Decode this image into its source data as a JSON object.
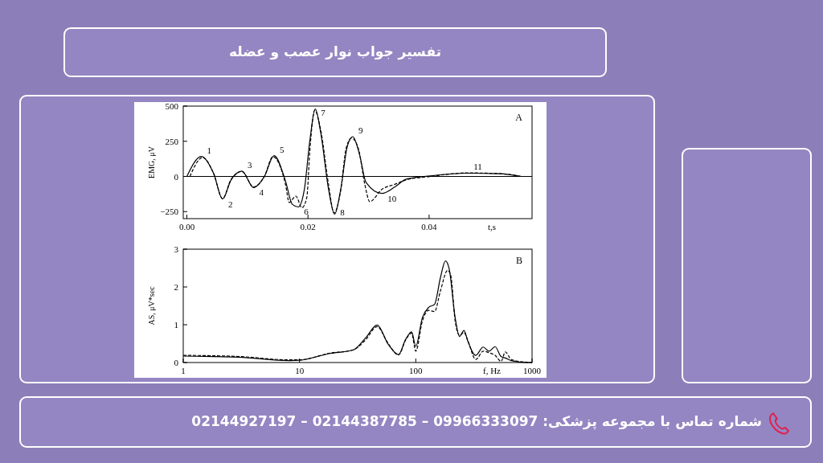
{
  "chart_data": [
    {
      "type": "line",
      "title": "تفسیر جواب نوار عصب و عضله",
      "xlabel": "t,s",
      "ylabel": "EMG, μV",
      "xlim": [
        -0.0006,
        0.057
      ],
      "ylim": [
        -300,
        500
      ],
      "xticks": [
        {
          "value": 0,
          "label": "0.00"
        },
        {
          "value": 0.02,
          "label": "0.02"
        },
        {
          "value": 0.04,
          "label": "0.04"
        }
      ],
      "yticks": [
        {
          "value": -250,
          "label": "−250"
        },
        0,
        250,
        500
      ],
      "ref_lines": [
        {
          "axis": "y",
          "value": 0,
          "color": "#000000"
        }
      ],
      "annotations": [
        "A",
        {
          "text": "1",
          "x": 0.0024,
          "y": 142
        },
        {
          "text": "2",
          "x": 0.0059,
          "y": -160
        },
        {
          "text": "3",
          "x": 0.0091,
          "y": 38
        },
        {
          "text": "4",
          "x": 0.011,
          "y": -79
        },
        {
          "text": "5",
          "x": 0.0144,
          "y": 148
        },
        {
          "text": "6",
          "x": 0.0184,
          "y": -217
        },
        {
          "text": "7",
          "x": 0.0212,
          "y": 479
        },
        {
          "text": "8",
          "x": 0.0244,
          "y": -269
        },
        {
          "text": "9",
          "x": 0.0274,
          "y": 283
        },
        {
          "text": "10",
          "x": 0.0322,
          "y": -121
        },
        {
          "text": "11",
          "x": 0.0464,
          "y": 23
        }
      ],
      "series": [
        {
          "color": "#000000",
          "line_style": "solid",
          "x": [
            0,
            0.0024,
            0.0044,
            0.0059,
            0.0073,
            0.0091,
            0.011,
            0.0128,
            0.0144,
            0.0163,
            0.0174,
            0.0184,
            0.0194,
            0.0203,
            0.0212,
            0.0221,
            0.0234,
            0.0244,
            0.0254,
            0.0265,
            0.0274,
            0.0285,
            0.0296,
            0.0322,
            0.0344,
            0.0362,
            0.0402,
            0.0464,
            0.0517,
            0.0552
          ],
          "values": [
            0,
            142,
            23,
            -160,
            -25,
            38,
            -79,
            0,
            148,
            -35,
            -198,
            -217,
            -92,
            254,
            479,
            312,
            -92,
            -269,
            -92,
            215,
            283,
            158,
            -44,
            -121,
            -73,
            -19,
            4,
            23,
            19,
            0
          ]
        },
        {
          "color": "#000000",
          "line_style": "dashed",
          "x": [
            0.0005,
            0.0026,
            0.0044,
            0.0059,
            0.0073,
            0.0091,
            0.011,
            0.0128,
            0.0142,
            0.0163,
            0.0169,
            0.018,
            0.019,
            0.0198,
            0.0203,
            0.0211,
            0.0221,
            0.0234,
            0.0243,
            0.0254,
            0.0263,
            0.0272,
            0.0283,
            0.0294,
            0.0302,
            0.0322,
            0.0344,
            0.0362,
            0.0402,
            0.0464,
            0.0517,
            0.0552
          ],
          "values": [
            0,
            135,
            23,
            -158,
            -20,
            35,
            -75,
            0,
            140,
            -60,
            -185,
            -140,
            -223,
            -150,
            180,
            470,
            330,
            -60,
            -260,
            -100,
            200,
            273,
            200,
            -60,
            -179,
            -92,
            -55,
            -25,
            0,
            25,
            20,
            0
          ]
        }
      ],
      "grid": false
    },
    {
      "type": "line",
      "xlabel": "f, Hz",
      "ylabel": "AS, μV*sec",
      "log": "x",
      "xlim": [
        1,
        1000
      ],
      "ylim": [
        0,
        3
      ],
      "xticks": [
        1,
        10,
        100,
        1000
      ],
      "yticks": [
        0,
        1,
        2,
        3
      ],
      "annotations": [
        "B",
        "شماره تماس با مجموعه پزشکی: 09966333097 – 02144387785 – 02144927197"
      ],
      "series": [
        {
          "color": "#000000",
          "line_style": "solid",
          "x": [
            1,
            3,
            8.2,
            10,
            18.3,
            28.8,
            37,
            46.5,
            58,
            71,
            82,
            92,
            100,
            114,
            129,
            145,
            163,
            180,
            194,
            218,
            238,
            260,
            279,
            328,
            380,
            426,
            481,
            541,
            589,
            662,
            889,
            1000
          ],
          "values": [
            0.17,
            0.14,
            0.05,
            0.06,
            0.24,
            0.33,
            0.65,
            0.99,
            0.48,
            0.21,
            0.62,
            0.81,
            0.43,
            1.19,
            1.46,
            1.54,
            2.25,
            2.69,
            2.47,
            1.19,
            0.69,
            0.85,
            0.58,
            0.19,
            0.41,
            0.3,
            0.42,
            0.16,
            0.12,
            0.05,
            0,
            0
          ]
        },
        {
          "color": "#000000",
          "line_style": "dashed",
          "x": [
            1,
            3,
            8.2,
            10,
            18.3,
            28.8,
            37,
            46.5,
            58,
            71,
            82,
            92,
            100,
            114,
            129,
            145,
            163,
            188,
            200,
            218,
            238,
            260,
            279,
            328,
            380,
            426,
            481,
            541,
            589,
            662,
            889,
            1000
          ],
          "values": [
            0.19,
            0.16,
            0.07,
            0.07,
            0.25,
            0.33,
            0.6,
            0.95,
            0.5,
            0.2,
            0.6,
            0.78,
            0.3,
            1.1,
            1.38,
            1.35,
            1.9,
            2.44,
            2.3,
            1.1,
            0.72,
            0.8,
            0.6,
            0.08,
            0.3,
            0.26,
            0.19,
            0.03,
            0.28,
            0.08,
            0.01,
            0
          ]
        }
      ],
      "grid": false
    }
  ]
}
